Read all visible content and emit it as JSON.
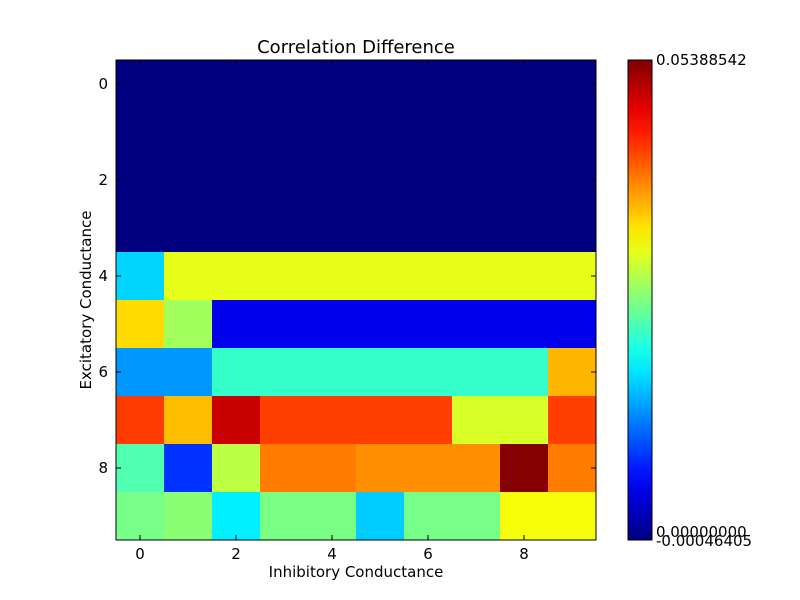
{
  "chart_data": {
    "type": "heatmap",
    "title": "Correlation Difference",
    "xlabel": "Inhibitory Conductance",
    "ylabel": "Excitatory Conductance",
    "colormap": "jet",
    "vmin": -0.00046405,
    "vmax": 0.05388542,
    "x_ticks": [
      0,
      2,
      4,
      6,
      8
    ],
    "y_ticks": [
      0,
      2,
      4,
      6,
      8
    ],
    "colorbar_tick_labels": [
      "0.05388542",
      "0.00000000",
      "-0.00046405"
    ],
    "rows": [
      [
        -0.00046405,
        -0.00046405,
        -0.00046405,
        -0.00046405,
        -0.00046405,
        -0.00046405,
        -0.00046405,
        -0.00046405,
        -0.00046405,
        -0.00046405
      ],
      [
        -0.00046405,
        -0.00046405,
        -0.00046405,
        -0.00046405,
        -0.00046405,
        -0.00046405,
        -0.00046405,
        -0.00046405,
        -0.00046405,
        -0.00046405
      ],
      [
        -0.00046405,
        -0.00046405,
        -0.00046405,
        -0.00046405,
        -0.00046405,
        -0.00046405,
        -0.00046405,
        -0.00046405,
        -0.00046405,
        -0.00046405
      ],
      [
        -0.00046405,
        -0.00046405,
        -0.00046405,
        -0.00046405,
        -0.00046405,
        -0.00046405,
        -0.00046405,
        -0.00046405,
        -0.00046405,
        -0.00046405
      ],
      [
        0.0176,
        0.0322,
        0.0322,
        0.0322,
        0.0322,
        0.0322,
        0.0322,
        0.0322,
        0.0322,
        0.0322
      ],
      [
        0.0354,
        0.0286,
        0.0053,
        0.0053,
        0.0053,
        0.0053,
        0.0053,
        0.0053,
        0.0053,
        0.0053
      ],
      [
        0.0144,
        0.0144,
        0.0227,
        0.0227,
        0.0227,
        0.0227,
        0.0227,
        0.0227,
        0.0227,
        0.0374
      ],
      [
        0.044,
        0.037,
        0.05,
        0.0438,
        0.0438,
        0.0438,
        0.0438,
        0.0315,
        0.0315,
        0.0438
      ],
      [
        0.0242,
        0.009,
        0.03,
        0.0405,
        0.0405,
        0.0395,
        0.0395,
        0.0395,
        0.0536,
        0.0405
      ],
      [
        0.0262,
        0.0273,
        0.0191,
        0.0264,
        0.0264,
        0.0172,
        0.0262,
        0.0262,
        0.033,
        0.033
      ]
    ]
  }
}
